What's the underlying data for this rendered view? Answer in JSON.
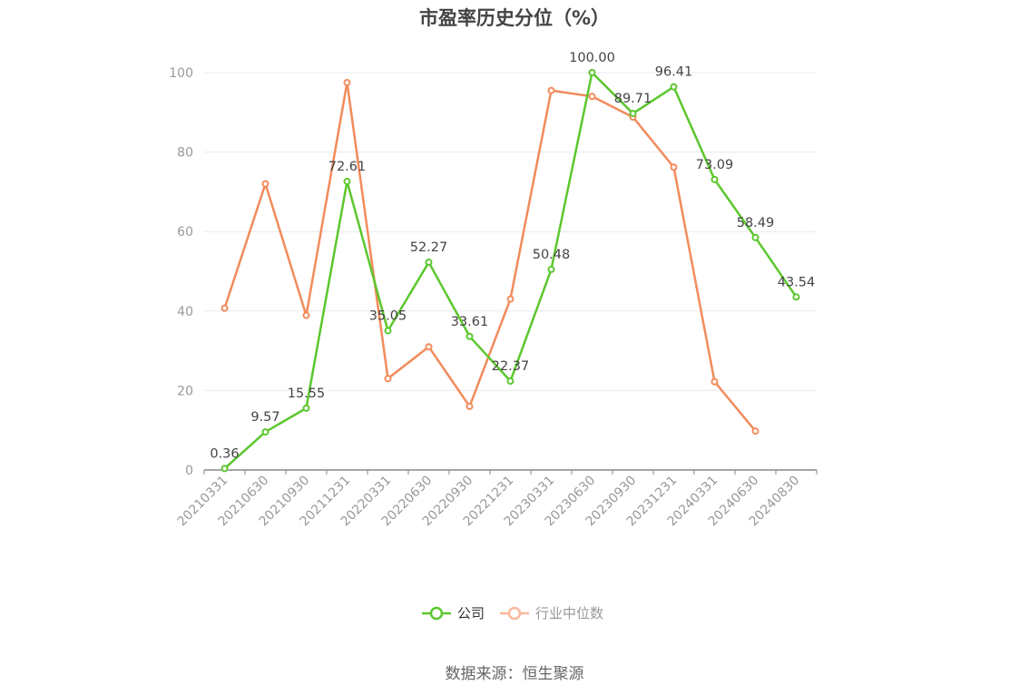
{
  "page": {
    "title": "市盈率历史分位（%）",
    "source": "数据来源：恒生聚源"
  },
  "chart_data": {
    "type": "line",
    "title": "市盈率历史分位（%）",
    "x": [
      "20210331",
      "20210630",
      "20210930",
      "20211231",
      "20220331",
      "20220630",
      "20220930",
      "20221231",
      "20230331",
      "20230630",
      "20230930",
      "20231231",
      "20240331",
      "20240630",
      "20240830"
    ],
    "ylim": [
      0,
      100
    ],
    "yticks": [
      0,
      20,
      40,
      60,
      80,
      100
    ],
    "grid": true,
    "legend_position": "bottom-center",
    "series": [
      {
        "name": "公司",
        "color": "#5cc72e",
        "values": [
          0.36,
          9.57,
          15.55,
          72.61,
          35.05,
          52.27,
          33.61,
          22.37,
          50.48,
          100.0,
          89.71,
          96.41,
          73.09,
          58.49,
          43.54
        ],
        "labels": [
          "0.36",
          "9.57",
          "15.55",
          "72.61",
          "35.05",
          "52.27",
          "33.61",
          "22.37",
          "50.48",
          "100.00",
          "89.71",
          "96.41",
          "73.09",
          "58.49",
          "43.54"
        ]
      },
      {
        "name": "行业中位数",
        "color": "#f28b5c",
        "values": [
          40.7,
          72.0,
          38.9,
          97.5,
          23.0,
          31.0,
          16.0,
          43.0,
          95.5,
          94.0,
          88.8,
          76.2,
          22.2,
          9.8,
          null
        ]
      }
    ]
  }
}
